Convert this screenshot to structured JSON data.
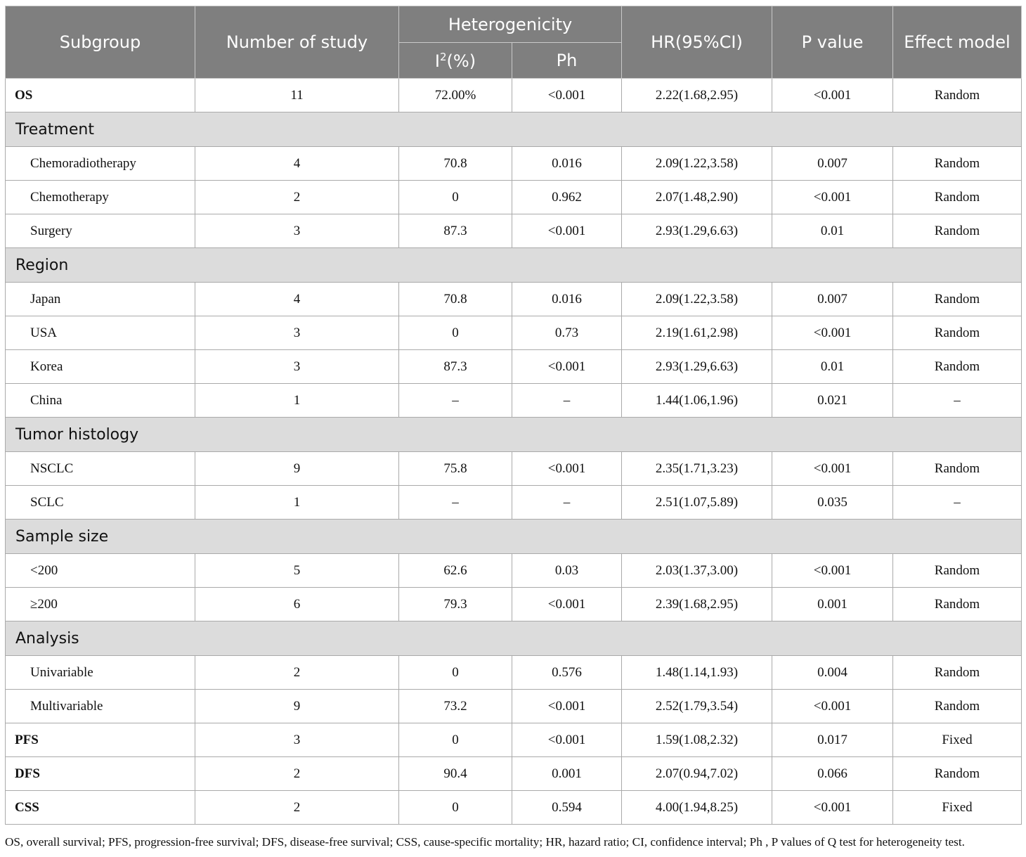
{
  "header": {
    "subgroup": "Subgroup",
    "number_of_study": "Number of study",
    "heterogenicity": "Heterogenicity",
    "i2_pre": "I",
    "i2_sup": "2",
    "i2_post": "(%)",
    "ph": "Ph",
    "hr": "HR(95%CI)",
    "p_value": "P value",
    "effect_model": "Effect model"
  },
  "rows": [
    {
      "kind": "top",
      "label": "OS",
      "n": "11",
      "i2": "72.00%",
      "ph": "<0.001",
      "hr": "2.22(1.68,2.95)",
      "p": "<0.001",
      "model": "Random"
    },
    {
      "kind": "section",
      "label": "Treatment"
    },
    {
      "kind": "sub",
      "label": "Chemoradiotherapy",
      "n": "4",
      "i2": "70.8",
      "ph": "0.016",
      "hr": "2.09(1.22,3.58)",
      "p": "0.007",
      "model": "Random"
    },
    {
      "kind": "sub",
      "label": "Chemotherapy",
      "n": "2",
      "i2": "0",
      "ph": "0.962",
      "hr": "2.07(1.48,2.90)",
      "p": "<0.001",
      "model": "Random"
    },
    {
      "kind": "sub",
      "label": "Surgery",
      "n": "3",
      "i2": "87.3",
      "ph": "<0.001",
      "hr": "2.93(1.29,6.63)",
      "p": "0.01",
      "model": "Random"
    },
    {
      "kind": "section",
      "label": "Region"
    },
    {
      "kind": "sub",
      "label": "Japan",
      "n": "4",
      "i2": "70.8",
      "ph": "0.016",
      "hr": "2.09(1.22,3.58)",
      "p": "0.007",
      "model": "Random"
    },
    {
      "kind": "sub",
      "label": "USA",
      "n": "3",
      "i2": "0",
      "ph": "0.73",
      "hr": "2.19(1.61,2.98)",
      "p": "<0.001",
      "model": "Random"
    },
    {
      "kind": "sub",
      "label": "Korea",
      "n": "3",
      "i2": "87.3",
      "ph": "<0.001",
      "hr": "2.93(1.29,6.63)",
      "p": "0.01",
      "model": "Random"
    },
    {
      "kind": "sub",
      "label": "China",
      "n": "1",
      "i2": "–",
      "ph": "–",
      "hr": "1.44(1.06,1.96)",
      "p": "0.021",
      "model": "–"
    },
    {
      "kind": "section",
      "label": "Tumor histology"
    },
    {
      "kind": "sub",
      "label": "NSCLC",
      "n": "9",
      "i2": "75.8",
      "ph": "<0.001",
      "hr": "2.35(1.71,3.23)",
      "p": "<0.001",
      "model": "Random"
    },
    {
      "kind": "sub",
      "label": "SCLC",
      "n": "1",
      "i2": "–",
      "ph": "–",
      "hr": "2.51(1.07,5.89)",
      "p": "0.035",
      "model": "–"
    },
    {
      "kind": "section",
      "label": "Sample size"
    },
    {
      "kind": "sub",
      "label": "<200",
      "n": "5",
      "i2": "62.6",
      "ph": "0.03",
      "hr": "2.03(1.37,3.00)",
      "p": "<0.001",
      "model": "Random"
    },
    {
      "kind": "sub",
      "label": "≥200",
      "n": "6",
      "i2": "79.3",
      "ph": "<0.001",
      "hr": "2.39(1.68,2.95)",
      "p": "0.001",
      "model": "Random"
    },
    {
      "kind": "section",
      "label": "Analysis"
    },
    {
      "kind": "sub",
      "label": "Univariable",
      "n": "2",
      "i2": "0",
      "ph": "0.576",
      "hr": "1.48(1.14,1.93)",
      "p": "0.004",
      "model": "Random"
    },
    {
      "kind": "sub",
      "label": "Multivariable",
      "n": "9",
      "i2": "73.2",
      "ph": "<0.001",
      "hr": "2.52(1.79,3.54)",
      "p": "<0.001",
      "model": "Random"
    },
    {
      "kind": "top",
      "label": "PFS",
      "n": "3",
      "i2": "0",
      "ph": "<0.001",
      "hr": "1.59(1.08,2.32)",
      "p": "0.017",
      "model": "Fixed"
    },
    {
      "kind": "top",
      "label": "DFS",
      "n": "2",
      "i2": "90.4",
      "ph": "0.001",
      "hr": "2.07(0.94,7.02)",
      "p": "0.066",
      "model": "Random"
    },
    {
      "kind": "top",
      "label": "CSS",
      "n": "2",
      "i2": "0",
      "ph": "0.594",
      "hr": "4.00(1.94,8.25)",
      "p": "<0.001",
      "model": "Fixed"
    }
  ],
  "footnote": "OS, overall survival; PFS, progression-free survival; DFS, disease-free survival; CSS, cause-specific mortality; HR, hazard ratio; CI, confidence interval; Ph , P values of Q test for heterogeneity test.",
  "colors": {
    "header_bg": "#7f7f7f",
    "header_text": "#ffffff",
    "section_bg": "#dcdcdc",
    "border": "#aaaaaa"
  }
}
